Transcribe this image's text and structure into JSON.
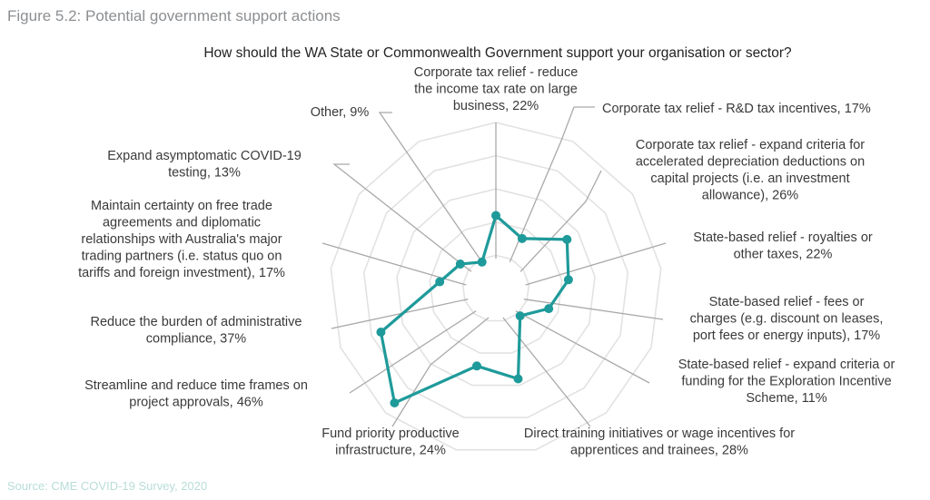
{
  "figure_caption": "Figure 5.2: Potential government support actions",
  "source_note": "Source: CME COVID-19 Survey, 2020",
  "colors": {
    "series": "#1f9a9a",
    "grid": "#e2e2e2",
    "spoke": "#a9a9a9"
  },
  "chart_data": {
    "type": "radar",
    "title": "How should the WA State or Commonwealth Government support your organisation or sector?",
    "grid": true,
    "grid_levels": [
      10,
      20,
      30,
      40,
      50
    ],
    "rmax": 50,
    "categories": [
      {
        "label_lines": [
          "Corporate tax relief - reduce",
          "the income tax rate on large",
          "business, 22%"
        ],
        "value": 22
      },
      {
        "label_lines": [
          "Corporate tax relief - R&D tax incentives, 17%"
        ],
        "value": 17
      },
      {
        "label_lines": [
          "Corporate tax relief - expand criteria for",
          "accelerated depreciation deductions on",
          "capital projects (i.e. an investment",
          "allowance), 26%"
        ],
        "value": 26
      },
      {
        "label_lines": [
          "State-based relief - royalties or",
          "other taxes, 22%"
        ],
        "value": 22
      },
      {
        "label_lines": [
          "State-based relief - fees or",
          "charges (e.g. discount on leases,",
          "port fees or energy inputs), 17%"
        ],
        "value": 17
      },
      {
        "label_lines": [
          "State-based relief - expand criteria or",
          "funding for the Exploration Incentive",
          "Scheme, 11%"
        ],
        "value": 11
      },
      {
        "label_lines": [
          "Direct training initiatives or wage incentives for",
          "apprentices and trainees, 28%"
        ],
        "value": 28
      },
      {
        "label_lines": [
          "Fund priority productive",
          "infrastructure, 24%"
        ],
        "value": 24
      },
      {
        "label_lines": [
          "Streamline and reduce time frames on",
          "project approvals, 46%"
        ],
        "value": 46
      },
      {
        "label_lines": [
          "Reduce the burden of administrative",
          "compliance, 37%"
        ],
        "value": 37
      },
      {
        "label_lines": [
          "Maintain certainty on free trade",
          "agreements and diplomatic",
          "relationships with Australia's major",
          "trading partners (i.e. status quo on",
          "tariffs and foreign investment), 17%"
        ],
        "value": 17
      },
      {
        "label_lines": [
          "Expand asymptomatic COVID-19",
          "testing, 13%"
        ],
        "value": 13
      },
      {
        "label_lines": [
          "Other, 9%"
        ],
        "value": 9
      }
    ]
  }
}
